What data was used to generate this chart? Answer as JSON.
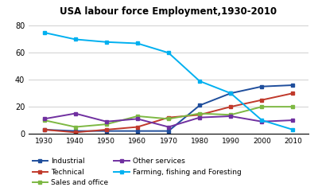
{
  "title": "USA labour force Employment,1930-2010",
  "years": [
    1930,
    1940,
    1950,
    1960,
    1970,
    1980,
    1990,
    2000,
    2010
  ],
  "series": {
    "Industrial": [
      3,
      2,
      2,
      2,
      2,
      21,
      30,
      35,
      36
    ],
    "Technical": [
      3,
      1,
      3,
      5,
      12,
      14,
      20,
      25,
      30
    ],
    "Sales and office": [
      10,
      5,
      7,
      13,
      11,
      15,
      14,
      20,
      20
    ],
    "Other services": [
      11,
      15,
      9,
      11,
      5,
      12,
      13,
      9,
      10
    ],
    "Farming, fishing and Foresting": [
      75,
      70,
      68,
      67,
      60,
      39,
      30,
      10,
      3
    ]
  },
  "colors": {
    "Industrial": "#1f4e9c",
    "Technical": "#c0392b",
    "Sales and office": "#7db843",
    "Other services": "#7030a0",
    "Farming, fishing and Foresting": "#00b0f0"
  },
  "ylim": [
    0,
    85
  ],
  "yticks": [
    0,
    20,
    40,
    60,
    80
  ],
  "background_color": "#ffffff"
}
